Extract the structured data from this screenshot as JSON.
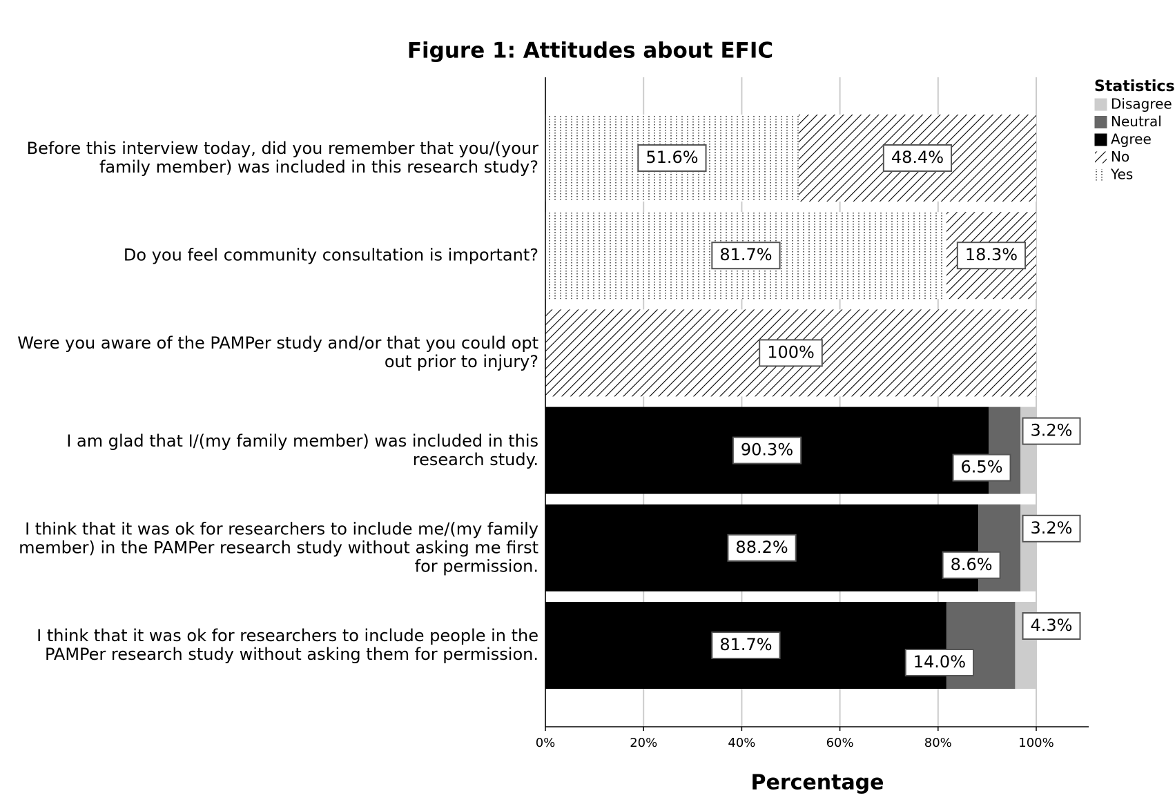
{
  "chart_data": {
    "type": "stacked_barh",
    "title": "Figure 1: Attitudes about EFIC",
    "xlabel": "Percentage",
    "legend_title": "Statistics",
    "legend_position": "upper right outside",
    "categories": [
      "Before this interview today, did you remember that you/(your family member) was included in this research study?",
      "Do you feel community consultation is important?",
      "Were you aware of the PAMPer study and/or that you could opt out prior to injury?",
      "I am glad that I/(my family member) was included in this research study.",
      "I think that it was ok for researchers to include me/(my family member) in the PAMPer research study without asking me first for permission.",
      "I think that it was ok for researchers to include people in the PAMPer research study without asking them for permission."
    ],
    "series": [
      {
        "name": "Yes",
        "color": "#ffffff",
        "pattern": "dots",
        "values": [
          51.6,
          81.7,
          null,
          null,
          null,
          null
        ],
        "value_labels": [
          "51.6%",
          "81.7%",
          null,
          null,
          null,
          null
        ]
      },
      {
        "name": "No",
        "color": "#ffffff",
        "pattern": "hatch",
        "values": [
          48.4,
          18.3,
          100,
          null,
          null,
          null
        ],
        "value_labels": [
          "48.4%",
          "18.3%",
          "100%",
          null,
          null,
          null
        ]
      },
      {
        "name": "Agree",
        "color": "#000000",
        "values": [
          null,
          null,
          null,
          90.3,
          88.2,
          81.7
        ],
        "value_labels": [
          null,
          null,
          null,
          "90.3%",
          "88.2%",
          "81.7%"
        ]
      },
      {
        "name": "Neutral",
        "color": "#666666",
        "values": [
          null,
          null,
          null,
          6.5,
          8.6,
          14.0
        ],
        "value_labels": [
          null,
          null,
          null,
          "6.5%",
          "8.6%",
          "14.0%"
        ]
      },
      {
        "name": "Disagree",
        "color": "#cccccc",
        "values": [
          null,
          null,
          null,
          3.2,
          3.2,
          4.3
        ],
        "value_labels": [
          null,
          null,
          null,
          "3.2%",
          "3.2%",
          "4.3%"
        ]
      }
    ],
    "xlim": [
      0,
      111
    ],
    "xticks": [
      {
        "value": 0,
        "label": "0%"
      },
      {
        "value": 20,
        "label": "20%"
      },
      {
        "value": 40,
        "label": "40%"
      },
      {
        "value": 60,
        "label": "60%"
      },
      {
        "value": 80,
        "label": "80%"
      },
      {
        "value": 100,
        "label": "100%"
      }
    ],
    "grid": true
  }
}
